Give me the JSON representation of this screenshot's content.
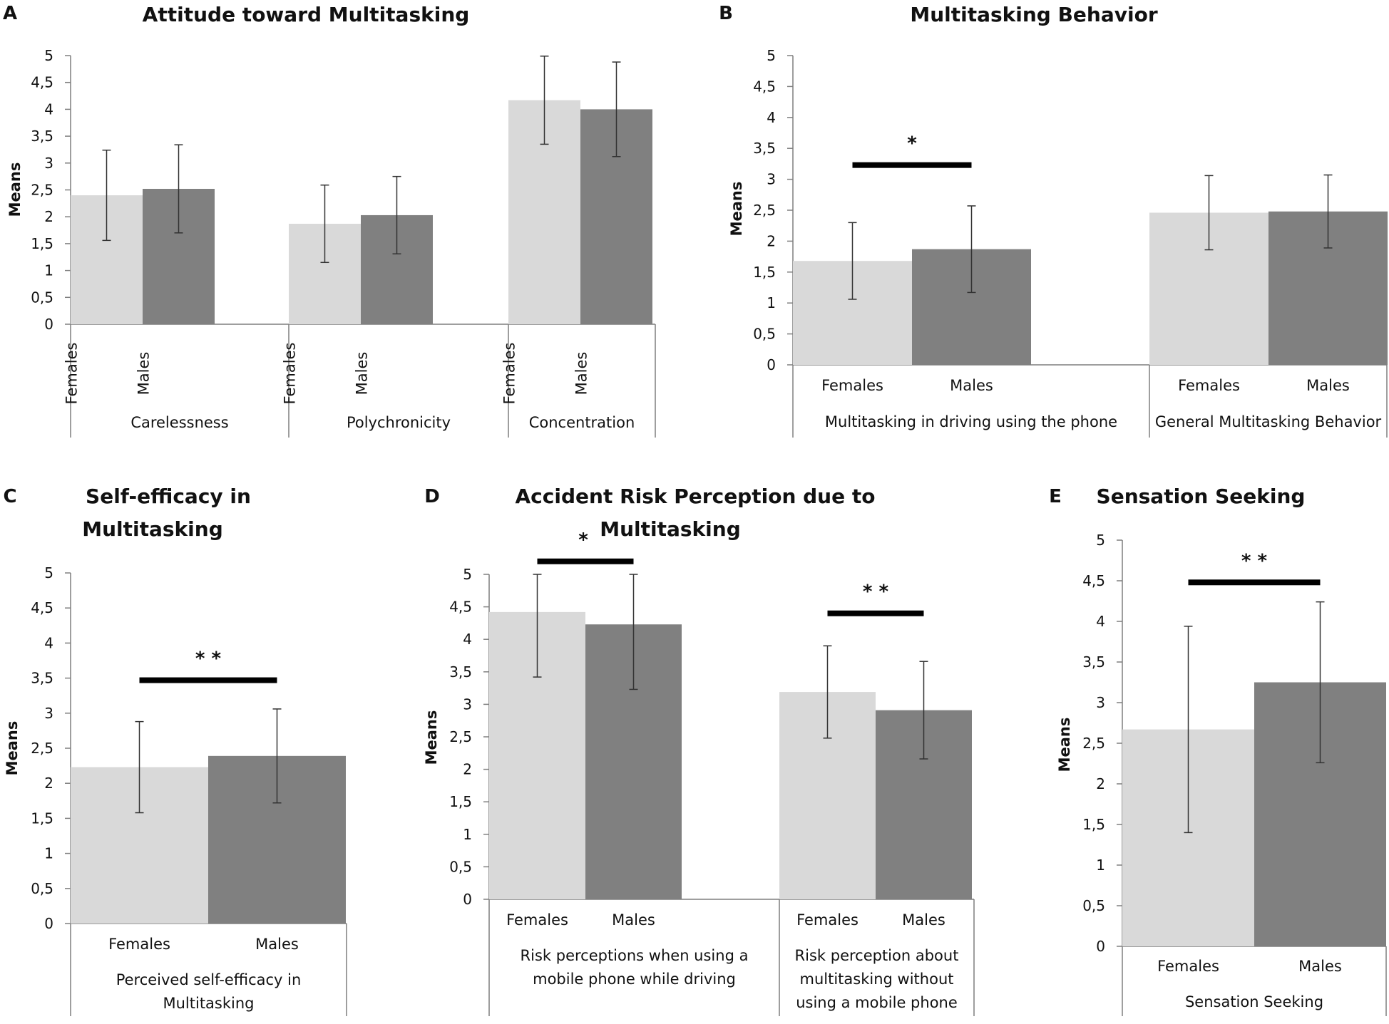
{
  "colors": {
    "females": "#d9d9d9",
    "males": "#808080",
    "axis": "#7f7f7f",
    "error": "#333333",
    "sigbar": "#000000"
  },
  "chart_data": [
    {
      "panel": "A",
      "type": "bar",
      "title": "Attitude toward Multitasking",
      "ylabel": "Means",
      "ylim": [
        0,
        5
      ],
      "yticks": [
        "0",
        "0,5",
        "1",
        "1,5",
        "2",
        "2,5",
        "3",
        "3,5",
        "4",
        "4,5",
        "5"
      ],
      "category_label_orientation": "vertical",
      "groups": [
        {
          "name": "Carelessness",
          "bars": [
            {
              "label": "Females",
              "value": 2.4,
              "error": 0.84
            },
            {
              "label": "Males",
              "value": 2.52,
              "error": 0.82
            }
          ]
        },
        {
          "name": "Polychronicity",
          "bars": [
            {
              "label": "Females",
              "value": 1.87,
              "error": 0.72
            },
            {
              "label": "Males",
              "value": 2.03,
              "error": 0.72
            }
          ]
        },
        {
          "name": "Concentration",
          "bars": [
            {
              "label": "Females",
              "value": 4.17,
              "error": 0.82
            },
            {
              "label": "Males",
              "value": 4.0,
              "error": 0.88
            }
          ]
        }
      ],
      "significance": []
    },
    {
      "panel": "B",
      "type": "bar",
      "title": "Multitasking Behavior",
      "ylabel": "Means",
      "ylim": [
        0,
        5
      ],
      "yticks": [
        "0",
        "0,5",
        "1",
        "1,5",
        "2",
        "2,5",
        "3",
        "3,5",
        "4",
        "4,5",
        "5"
      ],
      "category_label_orientation": "horizontal",
      "groups": [
        {
          "name": "Multitasking in driving using the phone",
          "bars": [
            {
              "label": "Females",
              "value": 1.68,
              "error": 0.62
            },
            {
              "label": "Males",
              "value": 1.87,
              "error": 0.7
            }
          ]
        },
        {
          "name": "General Multitasking Behavior",
          "bars": [
            {
              "label": "Females",
              "value": 2.46,
              "error": 0.6
            },
            {
              "label": "Males",
              "value": 2.48,
              "error": 0.59
            }
          ]
        }
      ],
      "significance": [
        {
          "group": 0,
          "level": 3.23,
          "mark": "*"
        }
      ]
    },
    {
      "panel": "C",
      "type": "bar",
      "title": "Self-efficacy in Multitasking",
      "title_lines": [
        "Self-efficacy in",
        "Multitasking"
      ],
      "ylabel": "Means",
      "ylim": [
        0,
        5
      ],
      "yticks": [
        "0",
        "0,5",
        "1",
        "1,5",
        "2",
        "2,5",
        "3",
        "3,5",
        "4",
        "4,5",
        "5"
      ],
      "category_label_orientation": "horizontal",
      "groups": [
        {
          "name": "Perceived self-efficacy in Multitasking",
          "name_lines": [
            "Perceived self-efficacy in",
            "Multitasking"
          ],
          "bars": [
            {
              "label": "Females",
              "value": 2.23,
              "error": 0.65
            },
            {
              "label": "Males",
              "value": 2.39,
              "error": 0.67
            }
          ]
        }
      ],
      "significance": [
        {
          "group": 0,
          "level": 3.47,
          "mark": "* *"
        }
      ]
    },
    {
      "panel": "D",
      "type": "bar",
      "title": "Accident Risk Perception due to Multitasking",
      "title_lines": [
        "Accident Risk Perception due to",
        "Multitasking"
      ],
      "ylabel": "Means",
      "ylim": [
        0,
        5
      ],
      "yticks": [
        "0",
        "0,5",
        "1",
        "1,5",
        "2",
        "2,5",
        "3",
        "3,5",
        "4",
        "4,5",
        "5"
      ],
      "category_label_orientation": "horizontal",
      "groups": [
        {
          "name": "Risk perceptions when using a mobile phone while driving",
          "name_lines": [
            "Risk perceptions when using a",
            "mobile phone while driving"
          ],
          "bars": [
            {
              "label": "Females",
              "value": 4.42,
              "error": 1.0
            },
            {
              "label": "Males",
              "value": 4.23,
              "error": 1.0
            }
          ]
        },
        {
          "name": "Risk perception about multitasking without using a mobile phone",
          "name_lines": [
            "Risk perception about",
            "multitasking without",
            "using a mobile phone"
          ],
          "bars": [
            {
              "label": "Females",
              "value": 3.19,
              "error": 0.71
            },
            {
              "label": "Males",
              "value": 2.91,
              "error": 0.75
            }
          ]
        }
      ],
      "significance": [
        {
          "group": 0,
          "level": 5.2,
          "mark": "*"
        },
        {
          "group": 1,
          "level": 4.4,
          "mark": "* *"
        }
      ]
    },
    {
      "panel": "E",
      "type": "bar",
      "title": "Sensation Seeking",
      "ylabel": "Means",
      "ylim": [
        0,
        5
      ],
      "yticks": [
        "0",
        "0,5",
        "1",
        "1,5",
        "2",
        "2,5",
        "3",
        "3,5",
        "4",
        "4,5",
        "5"
      ],
      "category_label_orientation": "horizontal",
      "groups": [
        {
          "name": "Sensation Seeking",
          "bars": [
            {
              "label": "Females",
              "value": 2.67,
              "error": 1.27
            },
            {
              "label": "Males",
              "value": 3.25,
              "error": 0.99
            }
          ]
        }
      ],
      "significance": [
        {
          "group": 0,
          "level": 4.48,
          "mark": "* *"
        }
      ]
    }
  ]
}
